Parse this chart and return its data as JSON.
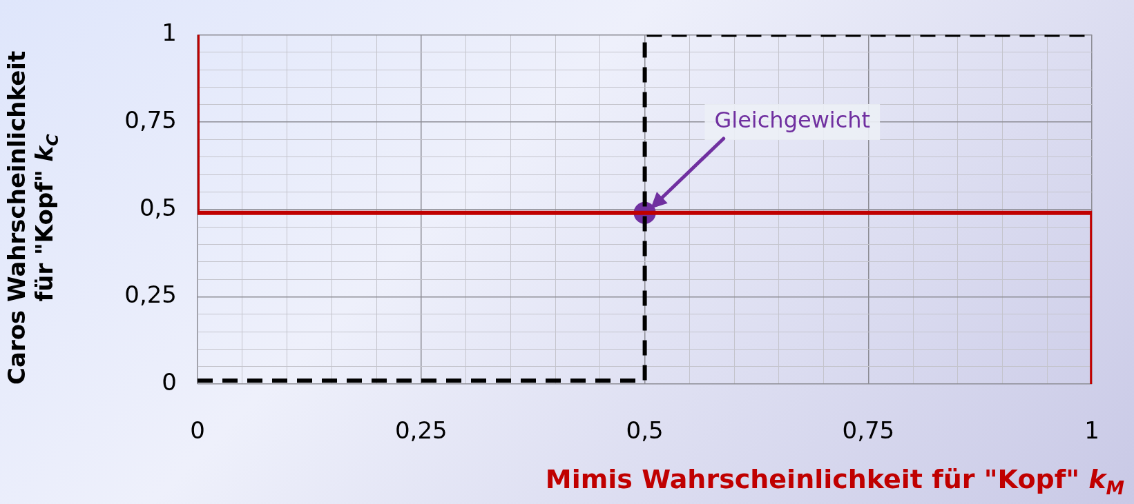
{
  "chart_data": {
    "type": "line",
    "xlabel": "Mimis Wahrscheinlichkeit für \"Kopf\" k$_{M}$",
    "ylabel": "Caros Wahrscheinlichkeit für \"Kopf\" k$_{C}$",
    "xlim": [
      0,
      1
    ],
    "ylim": [
      0,
      1
    ],
    "xticks": [
      0,
      {
        "value": 0.05,
        "label": null
      },
      {
        "value": 0.1,
        "label": null
      },
      {
        "value": 0.15,
        "label": null
      },
      {
        "value": 0.2,
        "label": null
      },
      {
        "value": 0.25,
        "label": "0,25"
      },
      {
        "value": 0.3,
        "label": null
      },
      {
        "value": 0.35,
        "label": null
      },
      {
        "value": 0.4,
        "label": null
      },
      {
        "value": 0.45,
        "label": null
      },
      {
        "value": 0.5,
        "label": "0,5"
      },
      {
        "value": 0.55,
        "label": null
      },
      {
        "value": 0.6,
        "label": null
      },
      {
        "value": 0.65,
        "label": null
      },
      {
        "value": 0.7,
        "label": null
      },
      {
        "value": 0.75,
        "label": "0,75"
      },
      {
        "value": 0.8,
        "label": null
      },
      {
        "value": 0.85,
        "label": null
      },
      {
        "value": 0.9,
        "label": null
      },
      {
        "value": 0.95,
        "label": null
      },
      1
    ],
    "yticks": [
      0,
      {
        "value": 0.05,
        "label": null
      },
      {
        "value": 0.1,
        "label": null
      },
      {
        "value": 0.15,
        "label": null
      },
      {
        "value": 0.2,
        "label": null
      },
      {
        "value": 0.25,
        "label": "0,25"
      },
      {
        "value": 0.3,
        "label": null
      },
      {
        "value": 0.35,
        "label": null
      },
      {
        "value": 0.4,
        "label": null
      },
      {
        "value": 0.45,
        "label": null
      },
      {
        "value": 0.5,
        "label": "0,5"
      },
      {
        "value": 0.55,
        "label": null
      },
      {
        "value": 0.6,
        "label": null
      },
      {
        "value": 0.65,
        "label": null
      },
      {
        "value": 0.7,
        "label": null
      },
      {
        "value": 0.75,
        "label": "0,75"
      },
      {
        "value": 0.8,
        "label": null
      },
      {
        "value": 0.85,
        "label": null
      },
      {
        "value": 0.9,
        "label": null
      },
      {
        "value": 0.95,
        "label": null
      },
      1
    ],
    "grid": true,
    "legend": false,
    "annotations": [
      "Gleichgewicht"
    ],
    "series": [
      {
        "type": "line",
        "color": "#c00000",
        "x": [
          0,
          0,
          1,
          1
        ],
        "values": [
          1,
          0.49,
          0.49,
          0
        ],
        "line_style": "solid",
        "marker": "none"
      },
      {
        "type": "line",
        "color": "#000000",
        "x": [
          0,
          0.5,
          0.5,
          1
        ],
        "values": [
          0.01,
          0.01,
          1,
          1
        ],
        "line_style": "dashed",
        "marker": "none"
      },
      {
        "type": "scatter",
        "color": "#7030a0",
        "x": [
          0.5
        ],
        "values": [
          0.49
        ],
        "marker": "circle"
      }
    ]
  }
}
